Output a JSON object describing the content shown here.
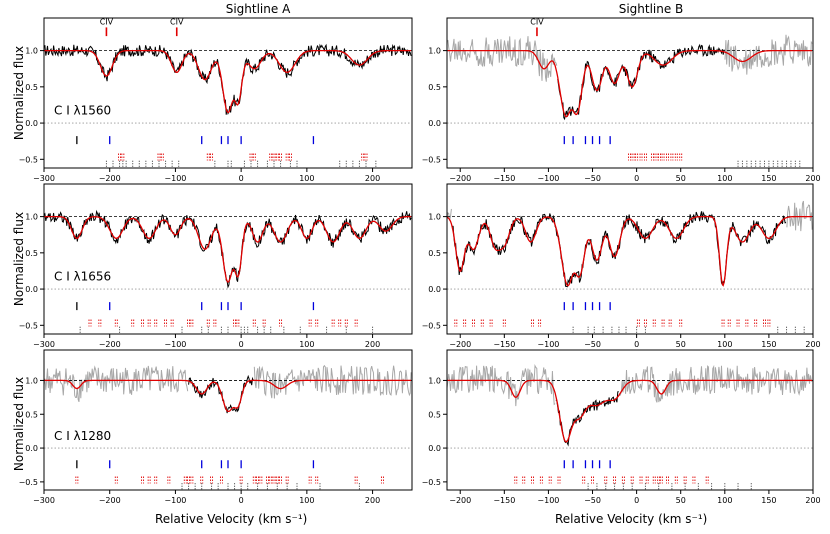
{
  "figure": {
    "col_titles": [
      "Sightline A",
      "Sightline B"
    ],
    "ylabel": "Normalized flux",
    "xlabel": "Relative Velocity",
    "xunit": "(km s⁻¹)"
  },
  "chart_data": [
    {
      "type": "line",
      "id": "A-1560",
      "sightline": "Sightline A",
      "row": 0,
      "col": 0,
      "ion_label": "C I λ1560",
      "xlim": [
        -300,
        260
      ],
      "ylim": [
        -0.62,
        1.45
      ],
      "xticks": [
        -300,
        -200,
        -100,
        0,
        100,
        200
      ],
      "yticks": [
        -0.5,
        0.0,
        0.5,
        1.0
      ],
      "annotations": [
        {
          "text": "CIV",
          "x": -205
        },
        {
          "text": "CIV",
          "x": -98
        }
      ],
      "absorbers": [
        [
          -205,
          0.35,
          9
        ],
        [
          -98,
          0.3,
          8
        ],
        [
          -55,
          0.4,
          10
        ],
        [
          -20,
          0.85,
          8
        ],
        [
          -5,
          0.7,
          6
        ],
        [
          20,
          0.25,
          10
        ],
        [
          70,
          0.3,
          12
        ],
        [
          180,
          0.2,
          12
        ]
      ],
      "sightline_source": "observed",
      "ticks_black": [
        -250
      ],
      "ticks_blue": [
        -200,
        -60,
        -30,
        -20,
        0,
        110
      ],
      "ticks_red": [
        -185,
        -180,
        -125,
        -120,
        -50,
        -45,
        15,
        20,
        45,
        50,
        55,
        60,
        70,
        75,
        185,
        190
      ],
      "ticks_dots": [
        -205,
        -195,
        -185,
        -180,
        -175,
        -165,
        -155,
        -145,
        -135,
        -125,
        -115,
        -105,
        -95,
        -40,
        -20,
        -15,
        5,
        15,
        25,
        40,
        50,
        60,
        75,
        85,
        150,
        160,
        170,
        180,
        190,
        205
      ]
    },
    {
      "type": "line",
      "id": "B-1560",
      "sightline": "Sightline B",
      "row": 0,
      "col": 1,
      "ion_label": "",
      "xlim": [
        -215,
        200
      ],
      "ylim": [
        -0.62,
        1.45
      ],
      "xticks": [
        -200,
        -150,
        -100,
        -50,
        0,
        50,
        100,
        150,
        200
      ],
      "yticks": [
        -0.5,
        0.0,
        0.5,
        1.0
      ],
      "annotations": [
        {
          "text": "CIV",
          "x": -113
        }
      ],
      "absorbers": [
        [
          -105,
          0.25,
          6
        ],
        [
          -80,
          0.9,
          7
        ],
        [
          -68,
          0.85,
          6
        ],
        [
          -45,
          0.55,
          6
        ],
        [
          -25,
          0.45,
          6
        ],
        [
          -5,
          0.5,
          6
        ],
        [
          30,
          0.2,
          10
        ],
        [
          120,
          0.15,
          10
        ]
      ],
      "grey_ranges": [
        [
          -215,
          -90
        ],
        [
          100,
          200
        ]
      ],
      "ticks_black": [],
      "ticks_blue": [
        -82,
        -72,
        -58,
        -50,
        -42,
        -30
      ],
      "ticks_red": [
        -8,
        -4,
        0,
        5,
        10,
        18,
        22,
        26,
        30,
        35,
        40,
        45,
        50
      ],
      "ticks_dots": [
        115,
        120,
        125,
        130,
        135,
        140,
        145,
        150,
        155,
        160,
        165,
        170,
        175,
        180,
        185
      ]
    },
    {
      "type": "line",
      "id": "A-1656",
      "sightline": "Sightline A",
      "row": 1,
      "col": 0,
      "ion_label": "C I λ1656",
      "xlim": [
        -300,
        260
      ],
      "ylim": [
        -0.62,
        1.45
      ],
      "xticks": [
        -300,
        -200,
        -100,
        0,
        100,
        200
      ],
      "yticks": [
        -0.5,
        0.0,
        0.5,
        1.0
      ],
      "annotations": [],
      "absorbers": [
        [
          -250,
          0.3,
          8
        ],
        [
          -190,
          0.3,
          10
        ],
        [
          -140,
          0.3,
          10
        ],
        [
          -100,
          0.25,
          8
        ],
        [
          -55,
          0.45,
          10
        ],
        [
          -20,
          0.9,
          8
        ],
        [
          -5,
          0.8,
          6
        ],
        [
          25,
          0.35,
          8
        ],
        [
          60,
          0.35,
          10
        ],
        [
          100,
          0.3,
          8
        ],
        [
          140,
          0.35,
          10
        ],
        [
          180,
          0.3,
          10
        ],
        [
          220,
          0.2,
          10
        ]
      ],
      "ticks_black": [
        -250
      ],
      "ticks_blue": [
        -200,
        -60,
        -30,
        -20,
        0,
        110
      ],
      "ticks_red": [
        -230,
        -215,
        -190,
        -165,
        -150,
        -140,
        -130,
        -115,
        -105,
        -80,
        -75,
        -50,
        -40,
        -10,
        -5,
        20,
        35,
        60,
        105,
        115,
        140,
        150,
        160,
        175
      ],
      "ticks_dots": [
        -245,
        -185,
        -90,
        -60,
        -50,
        -30,
        -20,
        0,
        5,
        10,
        25,
        35,
        45,
        65,
        90,
        130,
        160,
        200
      ]
    },
    {
      "type": "line",
      "id": "B-1656",
      "sightline": "Sightline B",
      "row": 1,
      "col": 1,
      "ion_label": "",
      "xlim": [
        -215,
        200
      ],
      "ylim": [
        -0.62,
        1.45
      ],
      "xticks": [
        -200,
        -150,
        -100,
        -50,
        0,
        50,
        100,
        150,
        200
      ],
      "yticks": [
        -0.5,
        0.0,
        0.5,
        1.0
      ],
      "annotations": [],
      "absorbers": [
        [
          -200,
          0.75,
          5
        ],
        [
          -185,
          0.45,
          6
        ],
        [
          -160,
          0.4,
          6
        ],
        [
          -150,
          0.35,
          6
        ],
        [
          -120,
          0.35,
          6
        ],
        [
          -78,
          0.95,
          7
        ],
        [
          -65,
          0.8,
          6
        ],
        [
          -45,
          0.6,
          6
        ],
        [
          -25,
          0.55,
          6
        ],
        [
          10,
          0.3,
          8
        ],
        [
          45,
          0.3,
          8
        ],
        [
          98,
          0.95,
          4
        ],
        [
          120,
          0.35,
          8
        ],
        [
          150,
          0.3,
          8
        ]
      ],
      "grey_ranges": [
        [
          -215,
          -210
        ],
        [
          170,
          200
        ]
      ],
      "ticks_black": [],
      "ticks_blue": [
        -82,
        -72,
        -58,
        -50,
        -42,
        -30
      ],
      "ticks_red": [
        -205,
        -195,
        -185,
        -175,
        -165,
        -150,
        -118,
        -110,
        2,
        10,
        20,
        30,
        38,
        50,
        98,
        105,
        115,
        125,
        135,
        145,
        150
      ],
      "ticks_dots": [
        -72,
        -55,
        -48,
        -38,
        -28,
        -20,
        -12,
        0,
        10,
        160,
        170,
        180,
        190
      ]
    },
    {
      "type": "line",
      "id": "A-1280",
      "sightline": "Sightline A",
      "row": 2,
      "col": 0,
      "ion_label": "C I λ1280",
      "xlim": [
        -300,
        260
      ],
      "ylim": [
        -0.62,
        1.45
      ],
      "xticks": [
        -300,
        -200,
        -100,
        0,
        100,
        200
      ],
      "yticks": [
        -0.5,
        0.0,
        0.5,
        1.0
      ],
      "annotations": [],
      "absorbers": [
        [
          -250,
          0.12,
          6
        ],
        [
          -60,
          0.2,
          8
        ],
        [
          -20,
          0.45,
          8
        ],
        [
          -5,
          0.35,
          6
        ],
        [
          60,
          0.12,
          10
        ]
      ],
      "grey_ranges": [
        [
          -300,
          -80
        ],
        [
          20,
          260
        ]
      ],
      "ticks_black": [
        -250
      ],
      "ticks_blue": [
        -200,
        -60,
        -30,
        -20,
        0,
        110
      ],
      "ticks_red": [
        -250,
        -190,
        -150,
        -140,
        -130,
        -110,
        -85,
        -80,
        -75,
        -60,
        -45,
        -30,
        0,
        20,
        25,
        30,
        40,
        45,
        50,
        55,
        60,
        70,
        105,
        115,
        175,
        215
      ],
      "ticks_dots": [
        -90,
        -80,
        -70,
        -60,
        -45,
        -35,
        -20,
        -10,
        0,
        10,
        25,
        40,
        55,
        70,
        85,
        120,
        180
      ]
    },
    {
      "type": "line",
      "id": "B-1280",
      "sightline": "Sightline B",
      "row": 2,
      "col": 1,
      "ion_label": "",
      "xlim": [
        -215,
        200
      ],
      "ylim": [
        -0.62,
        1.45
      ],
      "xticks": [
        -200,
        -150,
        -100,
        -50,
        0,
        50,
        100,
        150,
        200
      ],
      "yticks": [
        -0.5,
        0.0,
        0.5,
        1.0
      ],
      "annotations": [],
      "absorbers": [
        [
          -137,
          0.25,
          5
        ],
        [
          -80,
          0.9,
          7
        ],
        [
          -65,
          0.5,
          8
        ],
        [
          -45,
          0.35,
          10
        ],
        [
          -25,
          0.25,
          8
        ],
        [
          28,
          0.2,
          5
        ]
      ],
      "grey_ranges": [
        [
          -215,
          -92
        ],
        [
          -20,
          200
        ]
      ],
      "ticks_black": [],
      "ticks_blue": [
        -82,
        -72,
        -58,
        -50,
        -42,
        -30
      ],
      "ticks_red": [
        -137,
        -128,
        -118,
        -108,
        -98,
        -88,
        -60,
        -50,
        -35,
        -25,
        -15,
        -5,
        5,
        12,
        20,
        25,
        28,
        35,
        45,
        55,
        65,
        80
      ],
      "ticks_dots": [
        -55,
        -45,
        -35,
        -25,
        -15,
        -5,
        10,
        25,
        40,
        55,
        70,
        85,
        100,
        115,
        130
      ]
    }
  ]
}
